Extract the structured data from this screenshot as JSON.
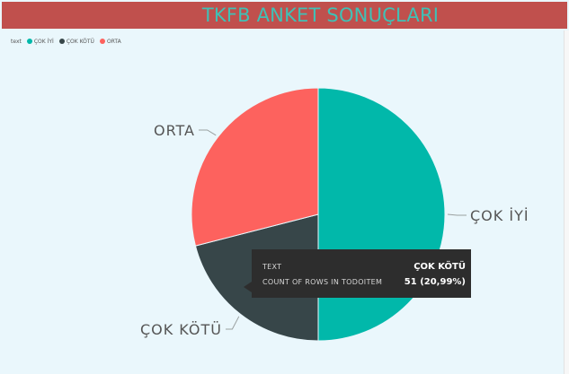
{
  "title": "TKFB ANKET SONUÇLARI",
  "legend": {
    "label": "text",
    "items": [
      {
        "name": "ÇOK İYİ",
        "color": "#01b8aa"
      },
      {
        "name": "ÇOK KÖTÜ",
        "color": "#374649"
      },
      {
        "name": "ORTA",
        "color": "#fd625e"
      }
    ]
  },
  "chart_data": {
    "type": "pie",
    "title": "",
    "legend_position": "top-left",
    "categories": [
      "ÇOK İYİ",
      "ÇOK KÖTÜ",
      "ORTA"
    ],
    "values": [
      50.0,
      20.99,
      29.01
    ],
    "colors": [
      "#01b8aa",
      "#374649",
      "#fd625e"
    ],
    "data_labels": [
      "ÇOK İYİ",
      "ÇOK KÖTÜ",
      "ORTA"
    ]
  },
  "tooltip": {
    "rows": [
      {
        "key": "TEXT",
        "value": "ÇOK KÖTÜ"
      },
      {
        "key": "COUNT OF ROWS IN TODOITEM",
        "value": "51 (20,99%)"
      }
    ]
  }
}
